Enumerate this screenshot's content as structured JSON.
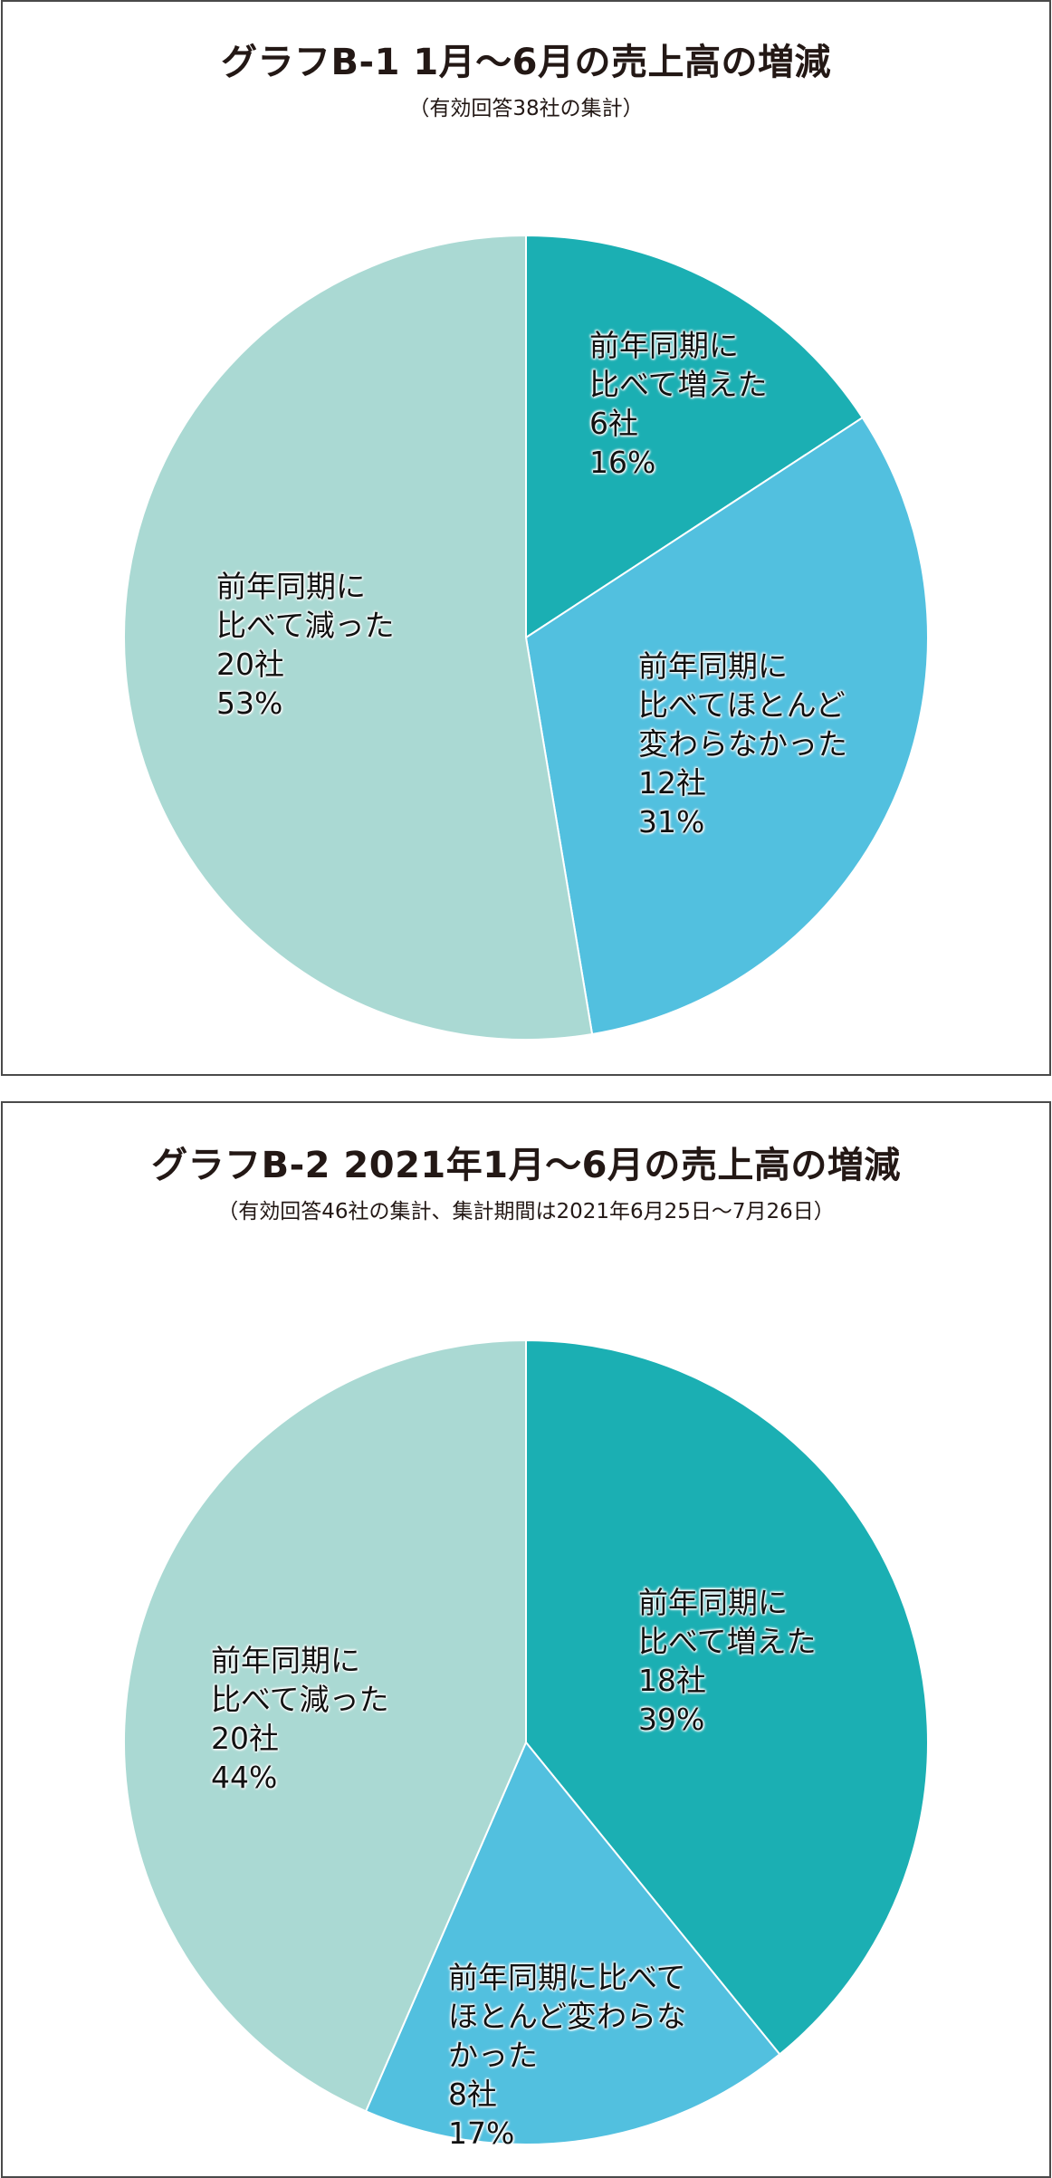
{
  "colors": {
    "increased": "#1bafb3",
    "unchanged": "#52c0df",
    "decreased": "#aad9d3",
    "border": "#4a4a4a",
    "slice_edge": "#ffffff"
  },
  "chart_data": [
    {
      "type": "pie",
      "title": "グラフB-1 1月〜6月の売上高の増減",
      "subtitle": "（有効回答38社の集計）",
      "start": "12 o'clock",
      "direction": "clockwise",
      "slices": [
        {
          "key": "increased",
          "label_lines": [
            "前年同期に",
            "比べて増えた"
          ],
          "count_label": "6社",
          "percent_label": "16%",
          "value": 6,
          "percent": 16
        },
        {
          "key": "unchanged",
          "label_lines": [
            "前年同期に",
            "比べてほとんど",
            "変わらなかった"
          ],
          "count_label": "12社",
          "percent_label": "31%",
          "value": 12,
          "percent": 31
        },
        {
          "key": "decreased",
          "label_lines": [
            "前年同期に",
            "比べて減った"
          ],
          "count_label": "20社",
          "percent_label": "53%",
          "value": 20,
          "percent": 53
        }
      ]
    },
    {
      "type": "pie",
      "title": "グラフB-2 2021年1月〜6月の売上高の増減",
      "subtitle": "（有効回答46社の集計、集計期間は2021年6月25日〜7月26日）",
      "start": "12 o'clock",
      "direction": "clockwise",
      "slices": [
        {
          "key": "increased",
          "label_lines": [
            "前年同期に",
            "比べて増えた"
          ],
          "count_label": "18社",
          "percent_label": "39%",
          "value": 18,
          "percent": 39
        },
        {
          "key": "unchanged",
          "label_lines": [
            "前年同期に比べて",
            "ほとんど変わらな",
            "かった"
          ],
          "count_label": "8社",
          "percent_label": "17%",
          "value": 8,
          "percent": 17
        },
        {
          "key": "decreased",
          "label_lines": [
            "前年同期に",
            "比べて減った"
          ],
          "count_label": "20社",
          "percent_label": "44%",
          "value": 20,
          "percent": 44
        }
      ]
    }
  ]
}
